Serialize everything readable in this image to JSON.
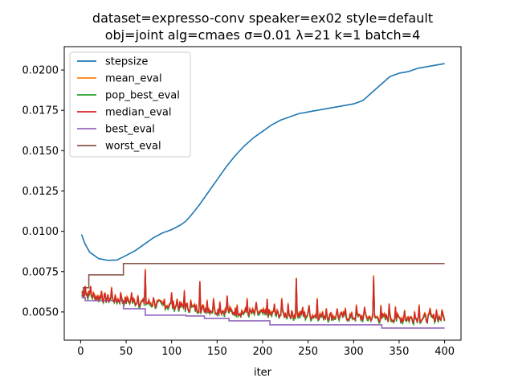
{
  "chart_data": {
    "type": "line",
    "title_line1": "dataset=expresso-conv speaker=ex02 style=default",
    "title_line2": "obj=joint alg=cmaes σ=0.01 λ=21 k=1 batch=4",
    "xlabel": "iter",
    "ylabel": "",
    "xlim": [
      -18,
      418
    ],
    "ylim": [
      0.00325,
      0.02145
    ],
    "xticks": [
      0,
      50,
      100,
      150,
      200,
      250,
      300,
      350,
      400
    ],
    "xtick_labels": [
      "0",
      "50",
      "100",
      "150",
      "200",
      "250",
      "300",
      "350",
      "400"
    ],
    "yticks": [
      0.005,
      0.0075,
      0.01,
      0.0125,
      0.015,
      0.0175,
      0.02
    ],
    "ytick_labels": [
      "0.0050",
      "0.0075",
      "0.0100",
      "0.0125",
      "0.0150",
      "0.0175",
      "0.0200"
    ],
    "grid": false,
    "legend_position": "upper-left",
    "series": [
      {
        "name": "stepsize",
        "color": "#1f77b4",
        "points": [
          [
            1,
            0.0098
          ],
          [
            5,
            0.0092
          ],
          [
            10,
            0.0087
          ],
          [
            15,
            0.0085
          ],
          [
            20,
            0.0083
          ],
          [
            25,
            0.00825
          ],
          [
            30,
            0.0082
          ],
          [
            40,
            0.00822
          ],
          [
            50,
            0.0085
          ],
          [
            60,
            0.0088
          ],
          [
            70,
            0.0092
          ],
          [
            80,
            0.0096
          ],
          [
            90,
            0.0099
          ],
          [
            100,
            0.0101
          ],
          [
            110,
            0.0104
          ],
          [
            115,
            0.0106
          ],
          [
            120,
            0.0109
          ],
          [
            130,
            0.0116
          ],
          [
            140,
            0.0124
          ],
          [
            150,
            0.0132
          ],
          [
            160,
            0.014
          ],
          [
            170,
            0.0147
          ],
          [
            180,
            0.0153
          ],
          [
            190,
            0.0158
          ],
          [
            200,
            0.0162
          ],
          [
            210,
            0.0166
          ],
          [
            220,
            0.0169
          ],
          [
            230,
            0.0171
          ],
          [
            240,
            0.0173
          ],
          [
            250,
            0.0174
          ],
          [
            260,
            0.0175
          ],
          [
            270,
            0.0176
          ],
          [
            280,
            0.0177
          ],
          [
            290,
            0.0178
          ],
          [
            300,
            0.0179
          ],
          [
            310,
            0.0181
          ],
          [
            320,
            0.0186
          ],
          [
            330,
            0.0191
          ],
          [
            340,
            0.0196
          ],
          [
            350,
            0.0198
          ],
          [
            360,
            0.0199
          ],
          [
            370,
            0.0201
          ],
          [
            380,
            0.0202
          ],
          [
            390,
            0.0203
          ],
          [
            400,
            0.0204
          ]
        ]
      },
      {
        "name": "mean_eval",
        "color": "#ff7f0e",
        "offset": 8e-05
      },
      {
        "name": "pop_best_eval",
        "color": "#2ca02c",
        "offset": -0.00012
      },
      {
        "name": "median_eval",
        "color": "#d62728",
        "base": [
          [
            1,
            0.0062
          ],
          [
            20,
            0.0059
          ],
          [
            50,
            0.0057
          ],
          [
            100,
            0.0054
          ],
          [
            150,
            0.0051
          ],
          [
            200,
            0.0049
          ],
          [
            250,
            0.0048
          ],
          [
            300,
            0.0047
          ],
          [
            350,
            0.0046
          ],
          [
            400,
            0.00465
          ]
        ],
        "spikes": [
          [
            5,
            0.0066
          ],
          [
            11,
            0.0066
          ],
          [
            23,
            0.0063
          ],
          [
            34,
            0.0065
          ],
          [
            44,
            0.0062
          ],
          [
            52,
            0.0058
          ],
          [
            56,
            0.0062
          ],
          [
            63,
            0.006
          ],
          [
            71,
            0.0076
          ],
          [
            80,
            0.0059
          ],
          [
            92,
            0.0058
          ],
          [
            100,
            0.0062
          ],
          [
            106,
            0.0058
          ],
          [
            114,
            0.0063
          ],
          [
            121,
            0.0057
          ],
          [
            131,
            0.0069
          ],
          [
            139,
            0.0057
          ],
          [
            146,
            0.0058
          ],
          [
            153,
            0.0056
          ],
          [
            161,
            0.006
          ],
          [
            172,
            0.0054
          ],
          [
            183,
            0.0058
          ],
          [
            193,
            0.0056
          ],
          [
            205,
            0.0058
          ],
          [
            213,
            0.0055
          ],
          [
            221,
            0.0058
          ],
          [
            228,
            0.0055
          ],
          [
            237,
            0.0071
          ],
          [
            244,
            0.0053
          ],
          [
            251,
            0.0054
          ],
          [
            260,
            0.0058
          ],
          [
            270,
            0.0052
          ],
          [
            282,
            0.0052
          ],
          [
            291,
            0.0052
          ],
          [
            303,
            0.0054
          ],
          [
            312,
            0.0053
          ],
          [
            322,
            0.0072
          ],
          [
            330,
            0.0054
          ],
          [
            339,
            0.0055
          ],
          [
            346,
            0.0053
          ],
          [
            356,
            0.0051
          ],
          [
            367,
            0.005
          ],
          [
            372,
            0.0054
          ],
          [
            384,
            0.0052
          ],
          [
            391,
            0.0051
          ],
          [
            397,
            0.0051
          ]
        ]
      },
      {
        "name": "best_eval",
        "color": "#9467bd",
        "steps": [
          [
            1,
            0.0059
          ],
          [
            5,
            0.0057
          ],
          [
            40,
            0.0057
          ],
          [
            47,
            0.0052
          ],
          [
            70,
            0.0052
          ],
          [
            71,
            0.0048
          ],
          [
            115,
            0.0048
          ],
          [
            116,
            0.00475
          ],
          [
            135,
            0.00475
          ],
          [
            136,
            0.0046
          ],
          [
            162,
            0.0046
          ],
          [
            163,
            0.00445
          ],
          [
            207,
            0.00445
          ],
          [
            208,
            0.0042
          ],
          [
            330,
            0.0042
          ],
          [
            331,
            0.004
          ],
          [
            400,
            0.004
          ]
        ]
      },
      {
        "name": "worst_eval",
        "color": "#8c564b",
        "steps": [
          [
            1,
            0.006
          ],
          [
            3,
            0.0065
          ],
          [
            8,
            0.0065
          ],
          [
            9,
            0.0073
          ],
          [
            46,
            0.0073
          ],
          [
            47,
            0.008
          ],
          [
            400,
            0.008
          ]
        ]
      }
    ]
  }
}
